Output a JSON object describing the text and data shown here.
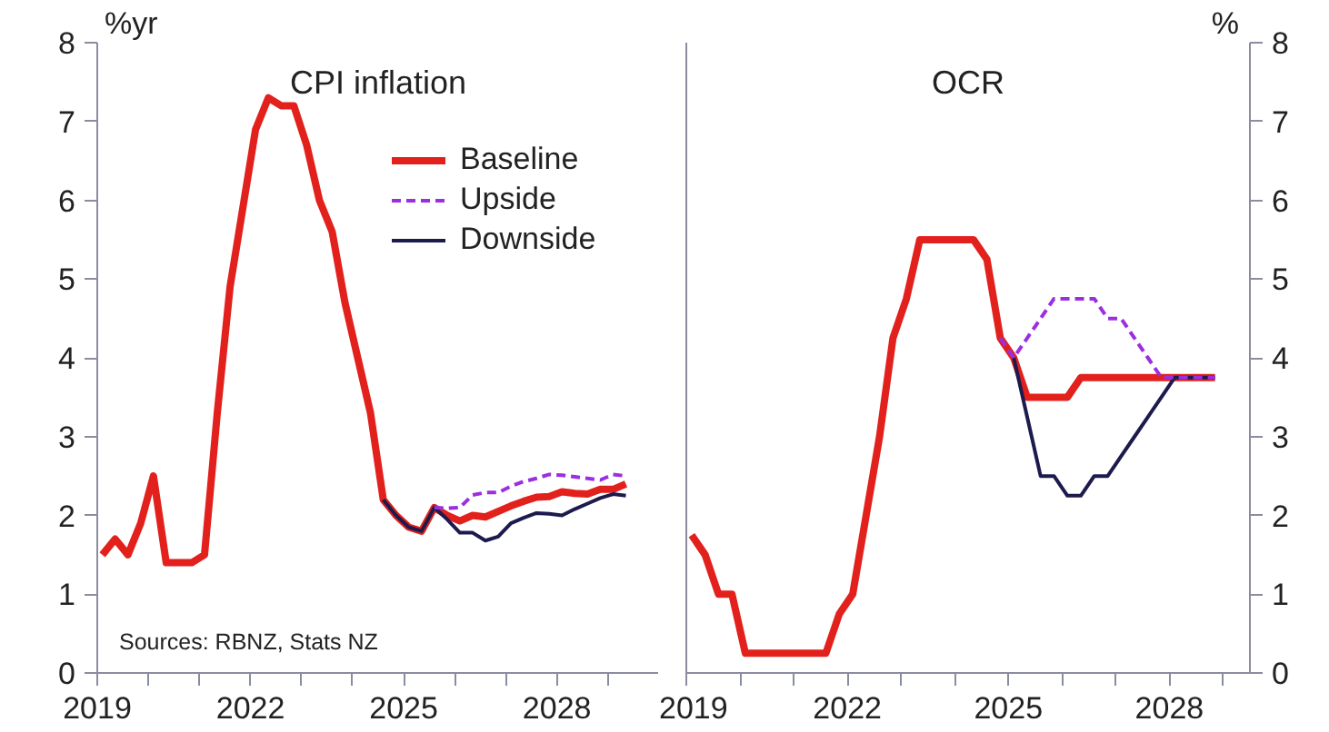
{
  "chart_data": [
    {
      "type": "line",
      "title": "CPI inflation",
      "ylabel": "%yr",
      "xlim": [
        2019,
        2030
      ],
      "ylim": [
        0,
        8
      ],
      "xticks": [
        2019,
        {
          "value": 2020,
          "label": null
        },
        {
          "value": 2021,
          "label": null
        },
        2022,
        {
          "value": 2023,
          "label": null
        },
        {
          "value": 2024,
          "label": null
        },
        2025,
        {
          "value": 2026,
          "label": null
        },
        {
          "value": 2027,
          "label": null
        },
        2028,
        {
          "value": 2029,
          "label": null
        },
        {
          "value": 2030,
          "label": null
        }
      ],
      "yticks": [
        0,
        1,
        2,
        3,
        4,
        5,
        6,
        7,
        8
      ],
      "grid": false,
      "legend": "top right",
      "annotations": [
        "Sources: RBNZ, Stats NZ"
      ],
      "series": [
        {
          "name": "Baseline",
          "color": "#e2201c",
          "line_style": "solid",
          "x": [
            2019.1,
            2019.35,
            2019.6,
            2019.85,
            2020.1,
            2020.35,
            2020.6,
            2020.85,
            2021.1,
            2021.35,
            2021.6,
            2021.85,
            2022.1,
            2022.35,
            2022.6,
            2022.85,
            2023.1,
            2023.35,
            2023.6,
            2023.85,
            2024.1,
            2024.35,
            2024.6,
            2024.85,
            2025.1,
            2025.35,
            2025.6,
            2025.85,
            2026.1,
            2026.35,
            2026.6,
            2026.85,
            2027.1,
            2027.35,
            2027.6,
            2027.85,
            2028.1,
            2028.35,
            2028.6,
            2028.85,
            2029.1,
            2029.35
          ],
          "values": [
            1.5,
            1.7,
            1.5,
            1.9,
            2.5,
            1.4,
            1.4,
            1.4,
            1.5,
            3.3,
            4.9,
            5.9,
            6.9,
            7.3,
            7.2,
            7.2,
            6.7,
            6.0,
            5.6,
            4.7,
            4.0,
            3.3,
            2.2,
            2.0,
            1.85,
            1.8,
            2.1,
            2.0,
            1.93,
            2.0,
            1.98,
            2.05,
            2.12,
            2.18,
            2.23,
            2.24,
            2.3,
            2.28,
            2.27,
            2.33,
            2.33,
            2.4
          ]
        },
        {
          "name": "Upside",
          "color": "#9b2fe0",
          "line_style": "dashed",
          "x": [
            2025.6,
            2025.85,
            2026.1,
            2026.35,
            2026.6,
            2026.85,
            2027.1,
            2027.35,
            2027.6,
            2027.85,
            2028.1,
            2028.35,
            2028.6,
            2028.85,
            2029.1,
            2029.35
          ],
          "values": [
            2.1,
            2.09,
            2.1,
            2.26,
            2.29,
            2.29,
            2.37,
            2.43,
            2.47,
            2.52,
            2.51,
            2.49,
            2.47,
            2.45,
            2.52,
            2.5
          ]
        },
        {
          "name": "Downside",
          "color": "#1d1b4d",
          "line_style": "solid",
          "x": [
            2024.6,
            2024.85,
            2025.1,
            2025.35,
            2025.6,
            2025.85,
            2026.1,
            2026.35,
            2026.6,
            2026.85,
            2027.1,
            2027.35,
            2027.6,
            2027.85,
            2028.1,
            2028.35,
            2028.6,
            2028.85,
            2029.1,
            2029.35
          ],
          "values": [
            2.2,
            2.0,
            1.85,
            1.8,
            2.1,
            1.95,
            1.78,
            1.78,
            1.68,
            1.73,
            1.9,
            1.97,
            2.03,
            2.02,
            2.0,
            2.08,
            2.15,
            2.22,
            2.27,
            2.25
          ]
        }
      ]
    },
    {
      "type": "line",
      "title": "OCR",
      "ylabel": "%",
      "xlim": [
        2019,
        2029.5
      ],
      "ylim": [
        0,
        8
      ],
      "xticks": [
        2019,
        {
          "value": 2020,
          "label": null
        },
        {
          "value": 2021,
          "label": null
        },
        2022,
        {
          "value": 2023,
          "label": null
        },
        {
          "value": 2024,
          "label": null
        },
        2025,
        {
          "value": 2026,
          "label": null
        },
        {
          "value": 2027,
          "label": null
        },
        2028,
        {
          "value": 2029,
          "label": null
        }
      ],
      "yticks": [
        0,
        1,
        2,
        3,
        4,
        5,
        6,
        7,
        8
      ],
      "grid": false,
      "series": [
        {
          "color": "#e2201c",
          "line_style": "solid",
          "x": [
            2019.1,
            2019.35,
            2019.6,
            2019.85,
            2020.1,
            2020.35,
            2020.6,
            2020.85,
            2021.1,
            2021.35,
            2021.6,
            2021.85,
            2022.1,
            2022.35,
            2022.6,
            2022.85,
            2023.1,
            2023.35,
            2023.6,
            2023.85,
            2024.1,
            2024.35,
            2024.6,
            2024.85,
            2025.1,
            2025.35,
            2025.6,
            2025.85,
            2026.1,
            2026.35,
            2026.6,
            2026.85,
            2027.1,
            2027.35,
            2027.6,
            2027.85,
            2028.1,
            2028.35,
            2028.6,
            2028.85
          ],
          "values": [
            1.75,
            1.5,
            1.0,
            1.0,
            0.25,
            0.25,
            0.25,
            0.25,
            0.25,
            0.25,
            0.25,
            0.75,
            1.0,
            2.0,
            3.0,
            4.25,
            4.75,
            5.5,
            5.5,
            5.5,
            5.5,
            5.5,
            5.25,
            4.25,
            4.0,
            3.5,
            3.5,
            3.5,
            3.5,
            3.75,
            3.75,
            3.75,
            3.75,
            3.75,
            3.75,
            3.75,
            3.75,
            3.75,
            3.75,
            3.75
          ]
        },
        {
          "color": "#9b2fe0",
          "line_style": "dashed",
          "x": [
            2024.85,
            2025.1,
            2025.35,
            2025.6,
            2025.85,
            2026.1,
            2026.35,
            2026.6,
            2026.85,
            2027.1,
            2027.35,
            2027.6,
            2027.85,
            2028.1,
            2028.35,
            2028.6,
            2028.85
          ],
          "values": [
            4.25,
            4.0,
            4.25,
            4.5,
            4.75,
            4.75,
            4.75,
            4.75,
            4.5,
            4.5,
            4.25,
            4.0,
            3.75,
            3.75,
            3.75,
            3.75,
            3.75
          ]
        },
        {
          "color": "#1d1b4d",
          "line_style": "solid",
          "x": [
            2025.1,
            2025.35,
            2025.6,
            2025.85,
            2026.1,
            2026.35,
            2026.6,
            2026.85,
            2027.1,
            2027.35,
            2027.6,
            2027.85,
            2028.1,
            2028.35,
            2028.6,
            2028.85
          ],
          "values": [
            4.0,
            3.25,
            2.5,
            2.5,
            2.25,
            2.25,
            2.5,
            2.5,
            2.75,
            3.0,
            3.25,
            3.5,
            3.75,
            3.75,
            3.75,
            3.75
          ]
        }
      ]
    }
  ]
}
